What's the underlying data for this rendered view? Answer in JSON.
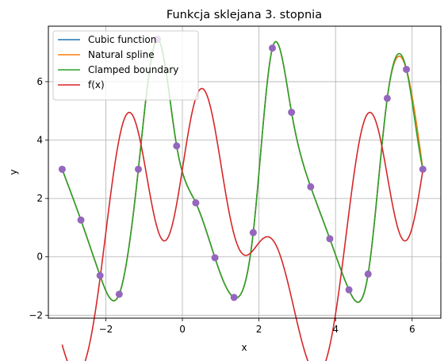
{
  "chart_data": {
    "type": "line",
    "title": "Funkcja sklejana 3. stopnia",
    "xlabel": "x",
    "ylabel": "y",
    "xlim": [
      -3.5,
      6.75
    ],
    "ylim": [
      -2.1,
      7.9
    ],
    "grid": true,
    "legend_position": "top-left",
    "x_ticks": [
      -2,
      0,
      2,
      4,
      6
    ],
    "x_tick_labels": [
      "−2",
      "0",
      "2",
      "4",
      "6"
    ],
    "y_ticks": [
      -2,
      0,
      2,
      4,
      6
    ],
    "y_tick_labels": [
      "−2",
      "0",
      "2",
      "4",
      "6"
    ],
    "nodes": {
      "x": [
        -3.14,
        -2.65,
        -2.15,
        -1.65,
        -1.15,
        -0.65,
        -0.15,
        0.35,
        0.85,
        1.35,
        1.85,
        2.35,
        2.85,
        3.35,
        3.85,
        4.35,
        4.85,
        5.35,
        5.85,
        6.28
      ],
      "y": [
        3.0,
        1.26,
        -0.64,
        -1.28,
        3.0,
        7.45,
        3.8,
        1.85,
        -0.03,
        -1.39,
        0.83,
        7.15,
        4.95,
        2.4,
        0.62,
        -1.13,
        -0.59,
        5.43,
        6.42,
        3.0
      ],
      "color": "#9467bd"
    },
    "series": [
      {
        "name": "Cubic function",
        "color": "#1f77b4"
      },
      {
        "name": "Natural spline",
        "color": "#ff7f0e"
      },
      {
        "name": "Clamped boundary",
        "color": "#2ca02c"
      },
      {
        "name": "f(x)",
        "color": "#d62728"
      }
    ]
  }
}
